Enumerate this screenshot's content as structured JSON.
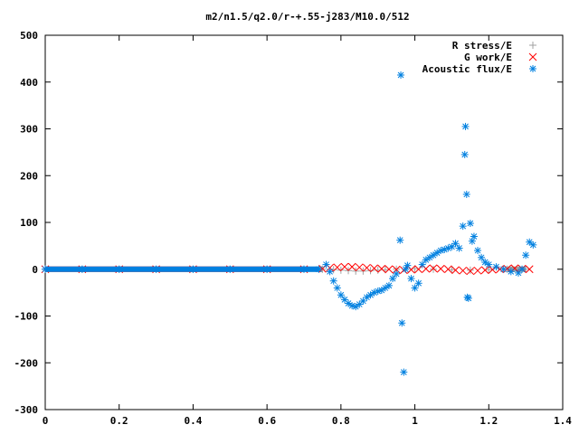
{
  "chart_data": {
    "type": "scatter",
    "title": "m2/n1.5/q2.0/r-+.55-j283/M10.0/512",
    "xlabel": "",
    "ylabel": "",
    "xlim": [
      0,
      1.4
    ],
    "ylim": [
      -300,
      500
    ],
    "x_ticks": [
      "0",
      "0.2",
      "0.4",
      "0.6",
      "0.8",
      "1",
      "1.2",
      "1.4"
    ],
    "y_ticks": [
      "-300",
      "-200",
      "-100",
      "0",
      "100",
      "200",
      "300",
      "400",
      "500"
    ],
    "grid": false,
    "legend_position": "top-right",
    "series": [
      {
        "name": "R stress/E",
        "marker": "plus",
        "color": "#a0a0a0",
        "points": [
          [
            0.0,
            0
          ],
          [
            0.1,
            0
          ],
          [
            0.2,
            0
          ],
          [
            0.3,
            0
          ],
          [
            0.4,
            0
          ],
          [
            0.5,
            0
          ],
          [
            0.6,
            0
          ],
          [
            0.7,
            0
          ],
          [
            0.75,
            0
          ],
          [
            0.78,
            -1
          ],
          [
            0.8,
            -2
          ],
          [
            0.82,
            -3
          ],
          [
            0.84,
            -4
          ],
          [
            0.86,
            -4
          ],
          [
            0.88,
            -3
          ],
          [
            0.9,
            -2
          ],
          [
            0.92,
            -1
          ],
          [
            0.95,
            0
          ],
          [
            1.0,
            1
          ],
          [
            1.05,
            0
          ],
          [
            1.1,
            -1
          ],
          [
            1.15,
            -2
          ],
          [
            1.2,
            -1
          ],
          [
            1.25,
            0
          ],
          [
            1.3,
            0
          ]
        ]
      },
      {
        "name": "G work/E",
        "marker": "cross",
        "color": "#ff0000",
        "points": [
          [
            0.0,
            0
          ],
          [
            0.1,
            0
          ],
          [
            0.2,
            0
          ],
          [
            0.3,
            0
          ],
          [
            0.4,
            0
          ],
          [
            0.5,
            0
          ],
          [
            0.6,
            0
          ],
          [
            0.7,
            0
          ],
          [
            0.75,
            1
          ],
          [
            0.77,
            3
          ],
          [
            0.79,
            4
          ],
          [
            0.81,
            5
          ],
          [
            0.83,
            5
          ],
          [
            0.85,
            4
          ],
          [
            0.87,
            3
          ],
          [
            0.89,
            2
          ],
          [
            0.91,
            1
          ],
          [
            0.93,
            0
          ],
          [
            0.95,
            -1
          ],
          [
            0.97,
            -2
          ],
          [
            0.99,
            -1
          ],
          [
            1.01,
            0
          ],
          [
            1.03,
            1
          ],
          [
            1.05,
            2
          ],
          [
            1.07,
            1
          ],
          [
            1.09,
            0
          ],
          [
            1.11,
            -2
          ],
          [
            1.13,
            -3
          ],
          [
            1.15,
            -4
          ],
          [
            1.17,
            -3
          ],
          [
            1.19,
            -2
          ],
          [
            1.21,
            -1
          ],
          [
            1.23,
            0
          ],
          [
            1.25,
            1
          ],
          [
            1.27,
            2
          ],
          [
            1.29,
            1
          ],
          [
            1.31,
            0
          ]
        ]
      },
      {
        "name": "Acoustic flux/E",
        "marker": "star",
        "color": "#0080e0",
        "points": [
          [
            0.0,
            0
          ],
          [
            0.1,
            0
          ],
          [
            0.2,
            0
          ],
          [
            0.3,
            0
          ],
          [
            0.4,
            0
          ],
          [
            0.5,
            0
          ],
          [
            0.6,
            0
          ],
          [
            0.7,
            0
          ],
          [
            0.74,
            0
          ],
          [
            0.76,
            10
          ],
          [
            0.77,
            -5
          ],
          [
            0.78,
            -25
          ],
          [
            0.79,
            -40
          ],
          [
            0.8,
            -55
          ],
          [
            0.81,
            -65
          ],
          [
            0.82,
            -73
          ],
          [
            0.83,
            -78
          ],
          [
            0.84,
            -80
          ],
          [
            0.85,
            -75
          ],
          [
            0.86,
            -68
          ],
          [
            0.87,
            -60
          ],
          [
            0.88,
            -55
          ],
          [
            0.89,
            -50
          ],
          [
            0.9,
            -47
          ],
          [
            0.91,
            -45
          ],
          [
            0.92,
            -40
          ],
          [
            0.93,
            -35
          ],
          [
            0.94,
            -20
          ],
          [
            0.95,
            -10
          ],
          [
            0.96,
            62
          ],
          [
            0.962,
            415
          ],
          [
            0.965,
            -115
          ],
          [
            0.97,
            -220
          ],
          [
            0.975,
            0
          ],
          [
            0.98,
            8
          ],
          [
            0.99,
            -20
          ],
          [
            1.0,
            -40
          ],
          [
            1.01,
            -30
          ],
          [
            1.02,
            10
          ],
          [
            1.03,
            20
          ],
          [
            1.04,
            25
          ],
          [
            1.05,
            30
          ],
          [
            1.06,
            35
          ],
          [
            1.07,
            40
          ],
          [
            1.08,
            42
          ],
          [
            1.09,
            45
          ],
          [
            1.1,
            48
          ],
          [
            1.11,
            55
          ],
          [
            1.12,
            45
          ],
          [
            1.13,
            92
          ],
          [
            1.135,
            245
          ],
          [
            1.137,
            305
          ],
          [
            1.14,
            160
          ],
          [
            1.142,
            -60
          ],
          [
            1.145,
            -62
          ],
          [
            1.15,
            98
          ],
          [
            1.155,
            60
          ],
          [
            1.16,
            70
          ],
          [
            1.17,
            40
          ],
          [
            1.18,
            25
          ],
          [
            1.19,
            15
          ],
          [
            1.2,
            10
          ],
          [
            1.22,
            5
          ],
          [
            1.24,
            0
          ],
          [
            1.26,
            -5
          ],
          [
            1.28,
            -8
          ],
          [
            1.29,
            0
          ],
          [
            1.3,
            30
          ],
          [
            1.31,
            58
          ],
          [
            1.32,
            52
          ]
        ]
      }
    ]
  }
}
